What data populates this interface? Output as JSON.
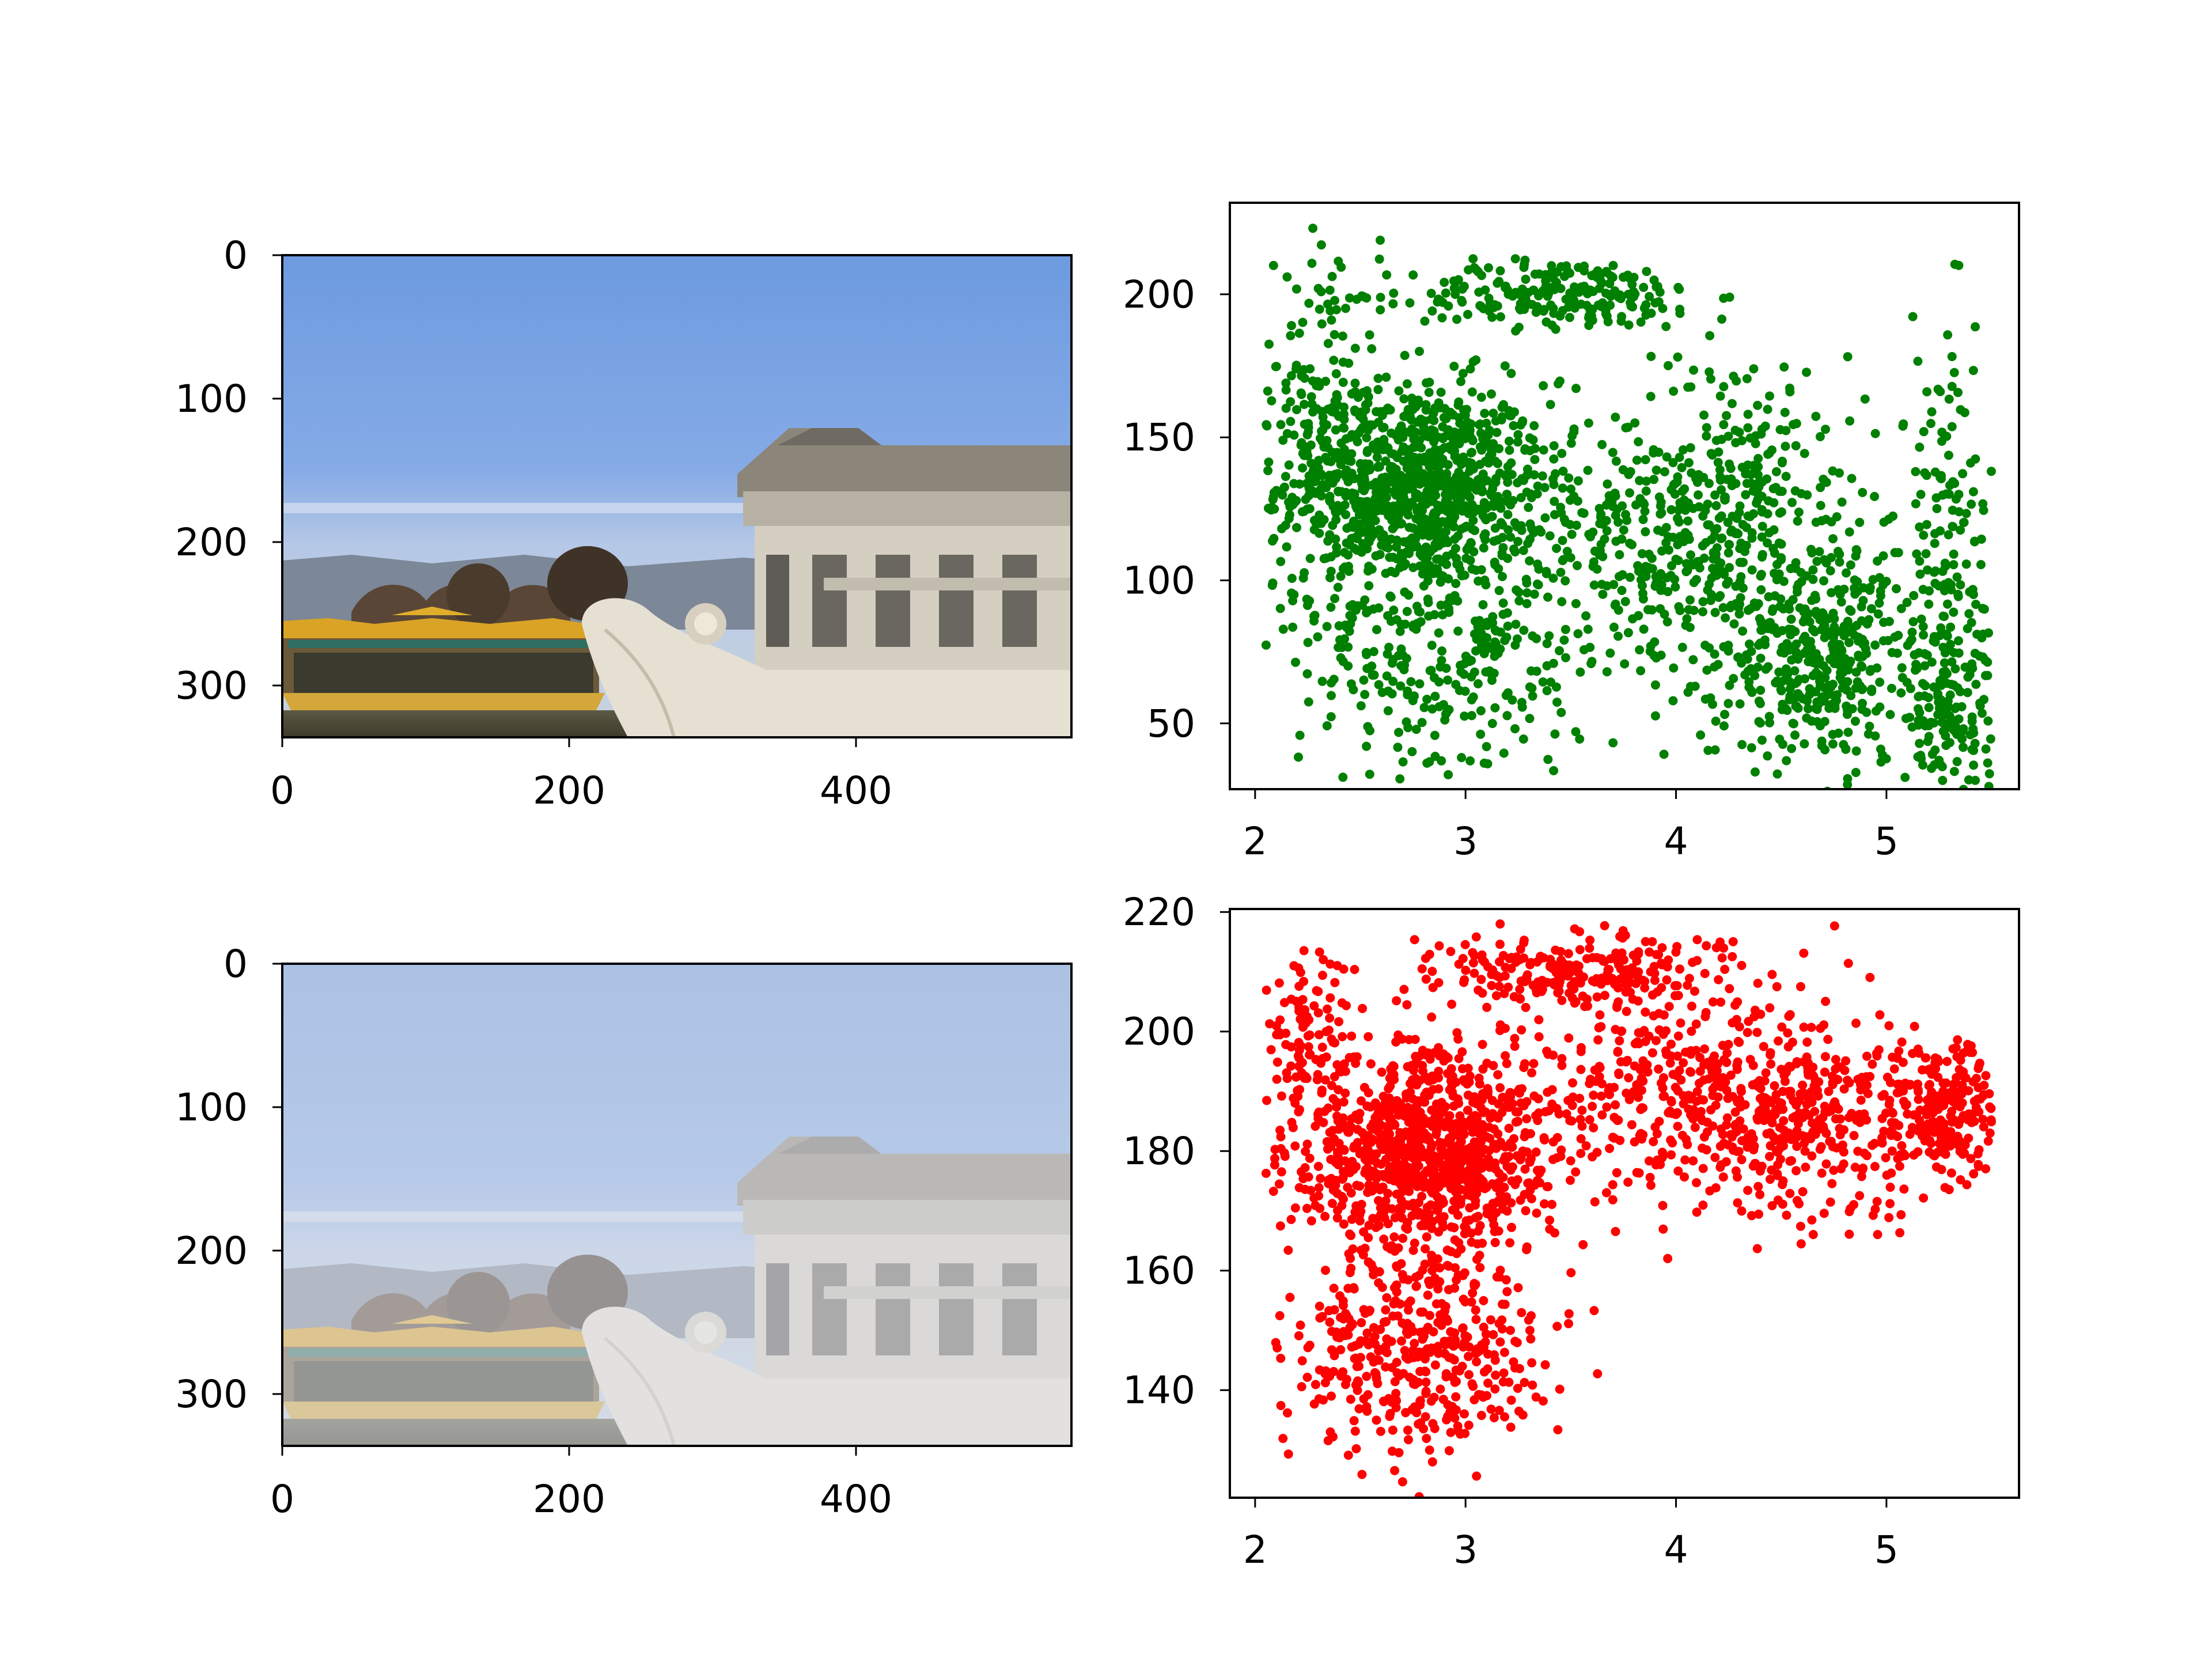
{
  "colors": {
    "green_series": "#008000",
    "red_series": "#ff0000",
    "axes": "#000000",
    "background": "#ffffff"
  },
  "panels": {
    "original_image": {
      "content": "photograph: Marble Boat (Qingyan Fang) and dragon boat at the Summer Palace, Beijing, under clear blue sky",
      "haze": 0
    },
    "hazy_image": {
      "content": "same photograph with a strong whitish haze applied",
      "haze": 0.55
    }
  },
  "chart_data": [
    {
      "type": "image",
      "panel": "top-left",
      "xticks": [
        "0",
        "200",
        "400"
      ],
      "yticks": [
        "0",
        "100",
        "200",
        "300"
      ],
      "xlim": [
        0,
        550
      ],
      "ylim": [
        336,
        0
      ]
    },
    {
      "type": "scatter",
      "panel": "top-right",
      "color": "#008000",
      "xlim": [
        1.88,
        5.63
      ],
      "ylim": [
        27,
        232
      ],
      "xticks": [
        "2",
        "3",
        "4",
        "5"
      ],
      "yticks": [
        "50",
        "100",
        "150",
        "200"
      ],
      "series": [
        {
          "clusters": [
            {
              "cx": 2.75,
              "cy": 133,
              "sx": 0.32,
              "sy": 18,
              "n": 950
            },
            {
              "cx": 3.45,
              "cy": 200,
              "sx": 0.35,
              "sy": 6,
              "n": 220
            },
            {
              "cx": 2.3,
              "cy": 165,
              "sx": 0.15,
              "sy": 35,
              "n": 150
            },
            {
              "cx": 2.9,
              "cy": 75,
              "sx": 0.35,
              "sy": 25,
              "n": 320
            },
            {
              "cx": 3.85,
              "cy": 115,
              "sx": 0.35,
              "sy": 22,
              "n": 280
            },
            {
              "cx": 4.35,
              "cy": 120,
              "sx": 0.3,
              "sy": 30,
              "n": 320
            },
            {
              "cx": 4.7,
              "cy": 70,
              "sx": 0.25,
              "sy": 18,
              "n": 360
            },
            {
              "cx": 5.3,
              "cy": 95,
              "sx": 0.15,
              "sy": 45,
              "n": 220
            },
            {
              "cx": 5.3,
              "cy": 48,
              "sx": 0.12,
              "sy": 10,
              "n": 80
            }
          ]
        }
      ]
    },
    {
      "type": "image",
      "panel": "bottom-left",
      "xticks": [
        "0",
        "200",
        "400"
      ],
      "yticks": [
        "0",
        "100",
        "200",
        "300"
      ],
      "xlim": [
        0,
        550
      ],
      "ylim": [
        336,
        0
      ]
    },
    {
      "type": "scatter",
      "panel": "bottom-right",
      "color": "#ff0000",
      "xlim": [
        1.88,
        5.63
      ],
      "ylim": [
        122,
        220.5
      ],
      "xticks": [
        "2",
        "3",
        "4",
        "5"
      ],
      "yticks": [
        "140",
        "160",
        "180",
        "200",
        "220"
      ],
      "series": [
        {
          "clusters": [
            {
              "cx": 2.8,
              "cy": 180,
              "sx": 0.3,
              "sy": 8,
              "n": 950
            },
            {
              "cx": 3.5,
              "cy": 210,
              "sx": 0.35,
              "sy": 3,
              "n": 240
            },
            {
              "cx": 2.25,
              "cy": 200,
              "sx": 0.1,
              "sy": 8,
              "n": 100
            },
            {
              "cx": 2.75,
              "cy": 148,
              "sx": 0.3,
              "sy": 10,
              "n": 450
            },
            {
              "cx": 3.9,
              "cy": 190,
              "sx": 0.4,
              "sy": 10,
              "n": 320
            },
            {
              "cx": 4.6,
              "cy": 185,
              "sx": 0.35,
              "sy": 8,
              "n": 400
            },
            {
              "cx": 5.3,
              "cy": 188,
              "sx": 0.15,
              "sy": 6,
              "n": 200
            }
          ]
        }
      ]
    }
  ]
}
